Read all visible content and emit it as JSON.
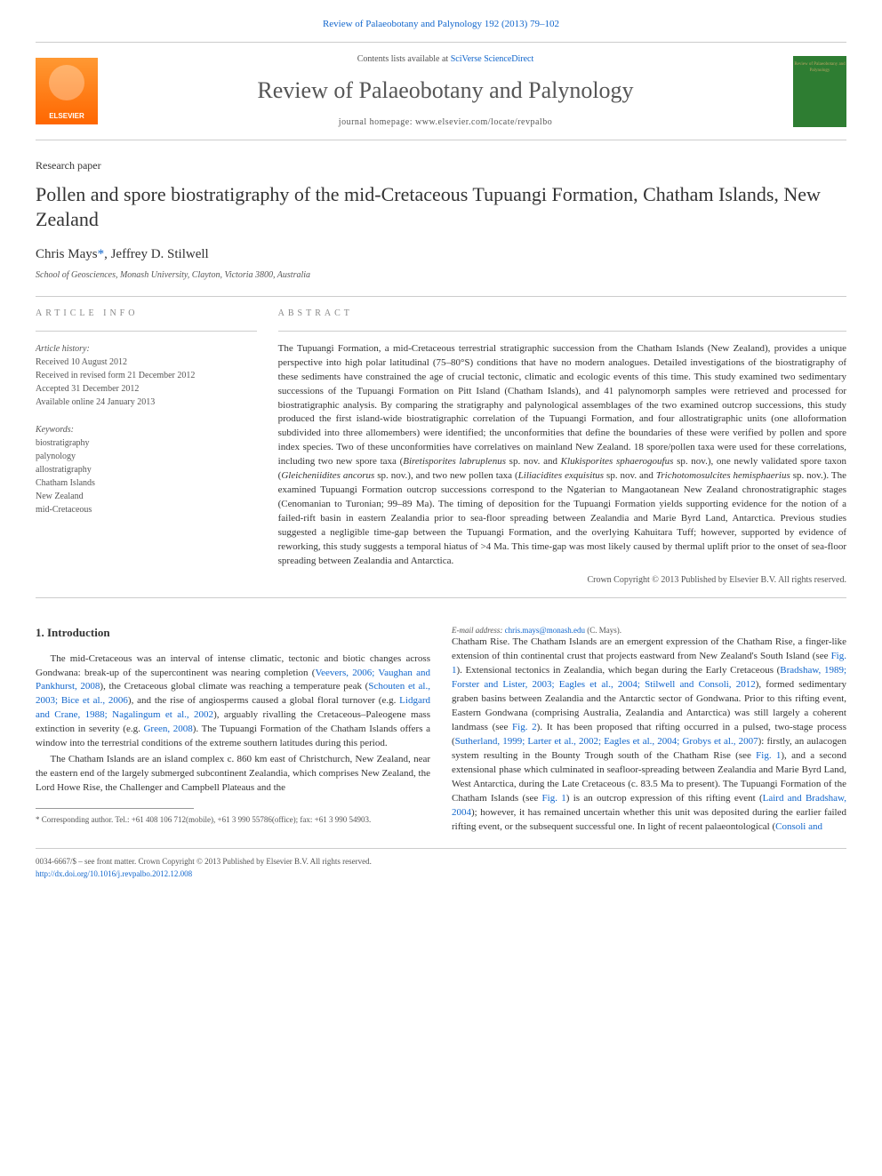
{
  "topLink": {
    "journal": "Review of Palaeobotany and Palynology",
    "citation": "192 (2013) 79–102"
  },
  "header": {
    "publisherLogo": "ELSEVIER",
    "contentsPrefix": "Contents lists available at",
    "contentsLinkText": "SciVerse ScienceDirect",
    "journalTitle": "Review of Palaeobotany and Palynology",
    "homepagePrefix": "journal homepage:",
    "homepageUrl": "www.elsevier.com/locate/revpalbo",
    "coverText": "Review of Palaeobotany and Palynology"
  },
  "paper": {
    "type": "Research paper",
    "title": "Pollen and spore biostratigraphy of the mid-Cretaceous Tupuangi Formation, Chatham Islands, New Zealand",
    "authors": "Chris Mays",
    "corrMark": "*",
    "authorsSuffix": ", Jeffrey D. Stilwell",
    "affiliation": "School of Geosciences, Monash University, Clayton, Victoria 3800, Australia"
  },
  "articleInfo": {
    "heading": "article info",
    "historyLabel": "Article history:",
    "received": "Received 10 August 2012",
    "revised": "Received in revised form 21 December 2012",
    "accepted": "Accepted 31 December 2012",
    "online": "Available online 24 January 2013",
    "keywordsLabel": "Keywords:",
    "keywords": [
      "biostratigraphy",
      "palynology",
      "allostratigraphy",
      "Chatham Islands",
      "New Zealand",
      "mid-Cretaceous"
    ]
  },
  "abstract": {
    "heading": "abstract",
    "text": "The Tupuangi Formation, a mid-Cretaceous terrestrial stratigraphic succession from the Chatham Islands (New Zealand), provides a unique perspective into high polar latitudinal (75–80°S) conditions that have no modern analogues. Detailed investigations of the biostratigraphy of these sediments have constrained the age of crucial tectonic, climatic and ecologic events of this time. This study examined two sedimentary successions of the Tupuangi Formation on Pitt Island (Chatham Islands), and 41 palynomorph samples were retrieved and processed for biostratigraphic analysis. By comparing the stratigraphy and palynological assemblages of the two examined outcrop successions, this study produced the first island-wide biostratigraphic correlation of the Tupuangi Formation, and four allostratigraphic units (one alloformation subdivided into three allomembers) were identified; the unconformities that define the boundaries of these were verified by pollen and spore index species. Two of these unconformities have correlatives on mainland New Zealand. 18 spore/pollen taxa were used for these correlations, including two new spore taxa (",
    "italic1": "Biretisporites labruplenus",
    "text2": " sp. nov. and ",
    "italic2": "Klukisporites sphaerogoufus",
    "text3": " sp. nov.), one newly validated spore taxon (",
    "italic3": "Gleicheniidites ancorus",
    "text4": " sp. nov.), and two new pollen taxa (",
    "italic4": "Liliacidites exquisitus",
    "text5": " sp. nov. and ",
    "italic5": "Trichotomosulcites hemisphaerius",
    "text6": " sp. nov.). The examined Tupuangi Formation outcrop successions correspond to the Ngaterian to Mangaotanean New Zealand chronostratigraphic stages (Cenomanian to Turonian; 99–89 Ma). The timing of deposition for the Tupuangi Formation yields supporting evidence for the notion of a failed-rift basin in eastern Zealandia prior to sea-floor spreading between Zealandia and Marie Byrd Land, Antarctica. Previous studies suggested a negligible time-gap between the Tupuangi Formation, and the overlying Kahuitara Tuff; however, supported by evidence of reworking, this study suggests a temporal hiatus of >4 Ma. This time-gap was most likely caused by thermal uplift prior to the onset of sea-floor spreading between Zealandia and Antarctica.",
    "copyright": "Crown Copyright © 2013 Published by Elsevier B.V. All rights reserved."
  },
  "introduction": {
    "heading": "1. Introduction",
    "para1_a": "The mid-Cretaceous was an interval of intense climatic, tectonic and biotic changes across Gondwana: break-up of the supercontinent was nearing completion (",
    "para1_link1": "Veevers, 2006; Vaughan and Pankhurst, 2008",
    "para1_b": "), the Cretaceous global climate was reaching a temperature peak (",
    "para1_link2": "Schouten et al., 2003; Bice et al., 2006",
    "para1_c": "), and the rise of angiosperms caused a global floral turnover (e.g. ",
    "para1_link3": "Lidgard and Crane, 1988; Nagalingum et al., 2002",
    "para1_d": "), arguably rivalling the Cretaceous–Paleogene mass extinction in severity (e.g. ",
    "para1_link4": "Green, 2008",
    "para1_e": "). The Tupuangi Formation of the Chatham Islands offers a window into the terrestrial conditions of the extreme southern latitudes during this period.",
    "para2_a": "The Chatham Islands are an island complex c. 860 km east of Christchurch, New Zealand, near the eastern end of the largely submerged subcontinent Zealandia, which comprises New Zealand, the Lord Howe Rise, the Challenger and Campbell Plateaus and the",
    "para2_b": "Chatham Rise. The Chatham Islands are an emergent expression of the Chatham Rise, a finger-like extension of thin continental crust that projects eastward from New Zealand's South Island (see ",
    "para2_link1": "Fig. 1",
    "para2_c": "). Extensional tectonics in Zealandia, which began during the Early Cretaceous (",
    "para2_link2": "Bradshaw, 1989; Forster and Lister, 2003; Eagles et al., 2004; Stilwell and Consoli, 2012",
    "para2_d": "), formed sedimentary graben basins between Zealandia and the Antarctic sector of Gondwana. Prior to this rifting event, Eastern Gondwana (comprising Australia, Zealandia and Antarctica) was still largely a coherent landmass (see ",
    "para2_link3": "Fig. 2",
    "para2_e": "). It has been proposed that rifting occurred in a pulsed, two-stage process (",
    "para2_link4": "Sutherland, 1999; Larter et al., 2002; Eagles et al., 2004; Grobys et al., 2007",
    "para2_f": "): firstly, an aulacogen system resulting in the Bounty Trough south of the Chatham Rise (see ",
    "para2_link5": "Fig. 1",
    "para2_g": "), and a second extensional phase which culminated in seafloor-spreading between Zealandia and Marie Byrd Land, West Antarctica, during the Late Cretaceous (c. 83.5 Ma to present). The Tupuangi Formation of the Chatham Islands (see ",
    "para2_link6": "Fig. 1",
    "para2_h": ") is an outcrop expression of this rifting event (",
    "para2_link7": "Laird and Bradshaw, 2004",
    "para2_i": "); however, it has remained uncertain whether this unit was deposited during the earlier failed rifting event, or the subsequent successful one. In light of recent palaeontological (",
    "para2_link8": "Consoli and"
  },
  "footnote": {
    "corrLabel": "* Corresponding author. Tel.: +61 408 106 712(mobile), +61 3 990 55786(office); fax: +61 3 990 54903.",
    "emailLabel": "E-mail address:",
    "email": "chris.mays@monash.edu",
    "emailSuffix": "(C. Mays)."
  },
  "footer": {
    "line1": "0034-6667/$ – see front matter. Crown Copyright © 2013 Published by Elsevier B.V. All rights reserved.",
    "doi": "http://dx.doi.org/10.1016/j.revpalbo.2012.12.008"
  }
}
